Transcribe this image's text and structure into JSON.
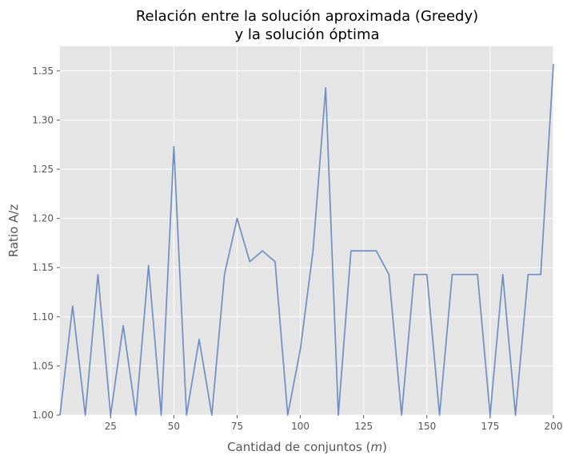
{
  "chart_data": {
    "type": "line",
    "title_line1": "Relación entre la solución aproximada (Greedy)",
    "title_line2": "y la solución óptima",
    "xlabel": "Cantidad de conjuntos (",
    "xlabel_var": "m",
    "xlabel_end": ")",
    "ylabel": "Ratio A/z",
    "xlim": [
      5,
      200
    ],
    "ylim": [
      1.0,
      1.375
    ],
    "xticks": [
      25,
      50,
      75,
      100,
      125,
      150,
      175,
      200
    ],
    "xtick_labels": [
      "25",
      "50",
      "75",
      "100",
      "125",
      "150",
      "175",
      "200"
    ],
    "yticks": [
      1.0,
      1.05,
      1.1,
      1.15,
      1.2,
      1.25,
      1.3,
      1.35
    ],
    "ytick_labels": [
      "1.00",
      "1.05",
      "1.10",
      "1.15",
      "1.20",
      "1.25",
      "1.30",
      "1.35"
    ],
    "grid": true,
    "line_color": "#6f8fc4",
    "background_color": "#e5e5e5",
    "x": [
      5,
      10,
      15,
      20,
      25,
      30,
      35,
      40,
      45,
      50,
      55,
      60,
      65,
      70,
      75,
      80,
      85,
      90,
      95,
      100,
      105,
      110,
      115,
      120,
      125,
      130,
      135,
      140,
      145,
      150,
      155,
      160,
      165,
      170,
      175,
      180,
      185,
      190,
      195,
      200
    ],
    "y": [
      1.0,
      1.111,
      1.0,
      1.143,
      1.0,
      1.091,
      1.0,
      1.152,
      1.0,
      1.273,
      1.0,
      1.077,
      1.0,
      1.143,
      1.2,
      1.156,
      1.167,
      1.156,
      1.0,
      1.067,
      1.167,
      1.333,
      1.0,
      1.167,
      1.167,
      1.167,
      1.143,
      1.0,
      1.143,
      1.143,
      1.0,
      1.143,
      1.143,
      1.143,
      1.0,
      1.143,
      1.0,
      1.143,
      1.143,
      1.357
    ]
  }
}
